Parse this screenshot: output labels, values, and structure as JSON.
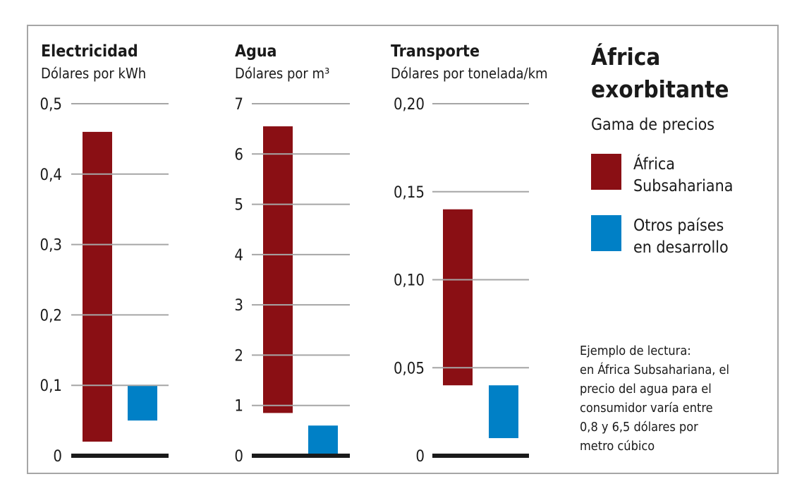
{
  "colors": {
    "africa": "#8a0f14",
    "others": "#0080c6",
    "grid": "#a6a6a6",
    "axis": "#1a1a1a"
  },
  "chart_data": [
    {
      "type": "bar",
      "subtype": "floating-range",
      "title": "Electricidad",
      "ylabel": "Dólares por kWh",
      "ylim": [
        0,
        0.5
      ],
      "yticks": [
        0,
        0.1,
        0.2,
        0.3,
        0.4,
        0.5
      ],
      "ytick_labels": [
        "0",
        "0,1",
        "0,2",
        "0,3",
        "0,4",
        "0,5"
      ],
      "grid": true,
      "series": [
        {
          "name": "África Subsahariana",
          "range": [
            0.02,
            0.46
          ]
        },
        {
          "name": "Otros países en desarrollo",
          "range": [
            0.05,
            0.1
          ]
        }
      ]
    },
    {
      "type": "bar",
      "subtype": "floating-range",
      "title": "Agua",
      "ylabel": "Dólares por m³",
      "ylim": [
        0,
        7
      ],
      "yticks": [
        0,
        1,
        2,
        3,
        4,
        5,
        6,
        7
      ],
      "ytick_labels": [
        "0",
        "1",
        "2",
        "3",
        "4",
        "5",
        "6",
        "7"
      ],
      "grid": true,
      "series": [
        {
          "name": "África Subsahariana",
          "range": [
            0.85,
            6.55
          ]
        },
        {
          "name": "Otros países en desarrollo",
          "range": [
            0,
            0.6
          ]
        }
      ]
    },
    {
      "type": "bar",
      "subtype": "floating-range",
      "title": "Transporte",
      "ylabel": "Dólares por tonelada/km",
      "ylim": [
        0,
        0.2
      ],
      "yticks": [
        0,
        0.05,
        0.1,
        0.15,
        0.2
      ],
      "ytick_labels": [
        "0",
        "0,05",
        "0,10",
        "0,15",
        "0,20"
      ],
      "grid": true,
      "series": [
        {
          "name": "África Subsahariana",
          "range": [
            0.04,
            0.14
          ]
        },
        {
          "name": "Otros países en desarrollo",
          "range": [
            0.01,
            0.04
          ]
        }
      ]
    }
  ],
  "legend": {
    "title_lines": [
      "África",
      "exorbitante"
    ],
    "subtitle": "Gama de precios",
    "placement": "top-right",
    "items": [
      {
        "key": "africa",
        "lines": [
          "África",
          "Subsahariana"
        ]
      },
      {
        "key": "others",
        "lines": [
          "Otros países",
          "en desarrollo"
        ]
      }
    ]
  },
  "note": {
    "lines": [
      "Ejemplo de lectura:",
      "en África Subsahariana, el",
      "precio del agua para el",
      "consumidor varía entre",
      "0,8 y 6,5 dólares por",
      "metro cúbico"
    ]
  }
}
